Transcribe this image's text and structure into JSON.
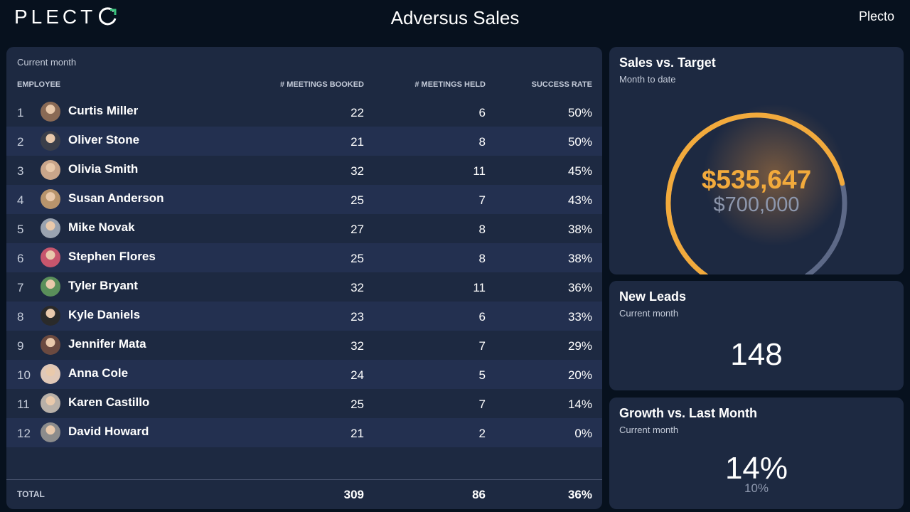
{
  "header": {
    "logo_text": "PLECT",
    "title": "Adversus Sales",
    "brand": "Plecto"
  },
  "table": {
    "period": "Current month",
    "columns": {
      "employee": "EMPLOYEE",
      "booked": "# MEETINGS BOOKED",
      "held": "# MEETINGS HELD",
      "rate": "SUCCESS RATE"
    },
    "rows": [
      {
        "rank": "1",
        "name": "Curtis Miller",
        "booked": "22",
        "held": "6",
        "rate": "50%",
        "avatar": "#8a6a55"
      },
      {
        "rank": "2",
        "name": "Oliver Stone",
        "booked": "21",
        "held": "8",
        "rate": "50%",
        "avatar": "#3b3f4a"
      },
      {
        "rank": "3",
        "name": "Olivia Smith",
        "booked": "32",
        "held": "11",
        "rate": "45%",
        "avatar": "#c9a58a"
      },
      {
        "rank": "4",
        "name": "Susan Anderson",
        "booked": "25",
        "held": "7",
        "rate": "43%",
        "avatar": "#b8946c"
      },
      {
        "rank": "5",
        "name": "Mike Novak",
        "booked": "27",
        "held": "8",
        "rate": "38%",
        "avatar": "#9aa3b0"
      },
      {
        "rank": "6",
        "name": "Stephen Flores",
        "booked": "25",
        "held": "8",
        "rate": "38%",
        "avatar": "#c7566d"
      },
      {
        "rank": "7",
        "name": "Tyler Bryant",
        "booked": "32",
        "held": "11",
        "rate": "36%",
        "avatar": "#5a8f5a"
      },
      {
        "rank": "8",
        "name": "Kyle Daniels",
        "booked": "23",
        "held": "6",
        "rate": "33%",
        "avatar": "#2a2a2a"
      },
      {
        "rank": "9",
        "name": "Jennifer Mata",
        "booked": "32",
        "held": "7",
        "rate": "29%",
        "avatar": "#6b4a40"
      },
      {
        "rank": "10",
        "name": "Anna Cole",
        "booked": "24",
        "held": "5",
        "rate": "20%",
        "avatar": "#e0c8b8"
      },
      {
        "rank": "11",
        "name": "Karen Castillo",
        "booked": "25",
        "held": "7",
        "rate": "14%",
        "avatar": "#b8b0a8"
      },
      {
        "rank": "12",
        "name": "David Howard",
        "booked": "21",
        "held": "2",
        "rate": "0%",
        "avatar": "#8c8c8c"
      }
    ],
    "total": {
      "label": "TOTAL",
      "booked": "309",
      "held": "86",
      "rate": "36%"
    }
  },
  "sales_target": {
    "title": "Sales vs. Target",
    "subtitle": "Month to date",
    "value": "$535,647",
    "target": "$700,000",
    "progress": 0.765,
    "colors": {
      "fill": "#f2aa3c",
      "track": "#5d6987"
    }
  },
  "new_leads": {
    "title": "New Leads",
    "subtitle": "Current month",
    "value": "148"
  },
  "growth": {
    "title": "Growth vs. Last Month",
    "subtitle": "Current month",
    "value": "14%",
    "previous": "10%"
  }
}
